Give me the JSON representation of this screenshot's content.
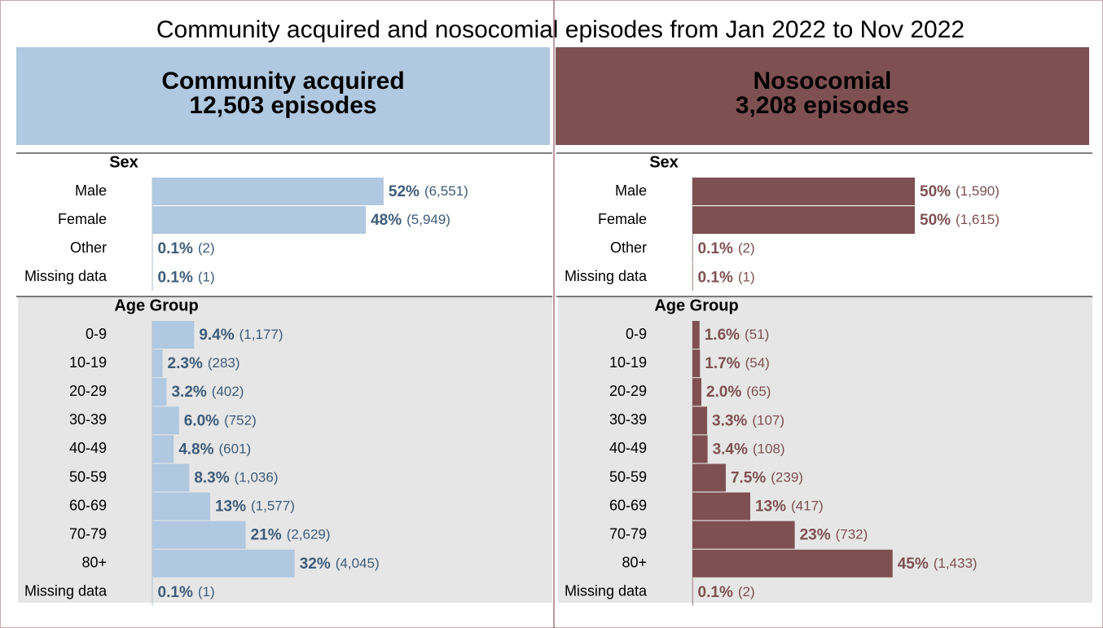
{
  "title": "Community acquired and nosocomial episodes from Jan 2022 to Nov 2022",
  "panels": [
    {
      "title": "Community acquired",
      "subtitle": "12,503 episodes",
      "color": "#b0c8e0",
      "text_color": "#000000",
      "chart_data": [
        {
          "type": "bar",
          "orientation": "horizontal",
          "title": "Sex",
          "color": "#b0c8e0",
          "label_color": "#3e5c7a",
          "categories": [
            "Male",
            "Female",
            "Other",
            "Missing data"
          ],
          "values": [
            52,
            48,
            0.1,
            0.1
          ],
          "value_labels": [
            "52%",
            "48%",
            "0.1%",
            "0.1%"
          ],
          "count_labels": [
            "(6,551)",
            "(5,949)",
            "(2)",
            "(1)"
          ]
        },
        {
          "type": "bar",
          "orientation": "horizontal",
          "title": "Age Group",
          "color": "#b0c8e0",
          "label_color": "#3e5c7a",
          "background": "#e6e6e6",
          "categories": [
            "0-9",
            "10-19",
            "20-29",
            "30-39",
            "40-49",
            "50-59",
            "60-69",
            "70-79",
            "80+",
            "Missing data"
          ],
          "values": [
            9.4,
            2.3,
            3.2,
            6.0,
            4.8,
            8.3,
            13,
            21,
            32,
            0.1
          ],
          "value_labels": [
            "9.4%",
            "2.3%",
            "3.2%",
            "6.0%",
            "4.8%",
            "8.3%",
            "13%",
            "21%",
            "32%",
            "0.1%"
          ],
          "count_labels": [
            "(1,177)",
            "(283)",
            "(402)",
            "(752)",
            "(601)",
            "(1,036)",
            "(1,577)",
            "(2,629)",
            "(4,045)",
            "(1)"
          ]
        }
      ]
    },
    {
      "title": "Nosocomial",
      "subtitle": "3,208 episodes",
      "color": "#7f5052",
      "text_color": "#000000",
      "chart_data": [
        {
          "type": "bar",
          "orientation": "horizontal",
          "title": "Sex",
          "color": "#7f5052",
          "label_color": "#7f5052",
          "categories": [
            "Male",
            "Female",
            "Other",
            "Missing data"
          ],
          "values": [
            50,
            50,
            0.1,
            0.1
          ],
          "value_labels": [
            "50%",
            "50%",
            "0.1%",
            "0.1%"
          ],
          "count_labels": [
            "(1,590)",
            "(1,615)",
            "(2)",
            "(1)"
          ]
        },
        {
          "type": "bar",
          "orientation": "horizontal",
          "title": "Age Group",
          "color": "#7f5052",
          "label_color": "#7f5052",
          "background": "#e6e6e6",
          "categories": [
            "0-9",
            "10-19",
            "20-29",
            "30-39",
            "40-49",
            "50-59",
            "60-69",
            "70-79",
            "80+",
            "Missing data"
          ],
          "values": [
            1.6,
            1.7,
            2.0,
            3.3,
            3.4,
            7.5,
            13,
            23,
            45,
            0.1
          ],
          "value_labels": [
            "1.6%",
            "1.7%",
            "2.0%",
            "3.3%",
            "3.4%",
            "7.5%",
            "13%",
            "23%",
            "45%",
            "0.1%"
          ],
          "count_labels": [
            "(51)",
            "(54)",
            "(65)",
            "(107)",
            "(108)",
            "(239)",
            "(417)",
            "(732)",
            "(1,433)",
            "(2)"
          ]
        }
      ]
    }
  ]
}
